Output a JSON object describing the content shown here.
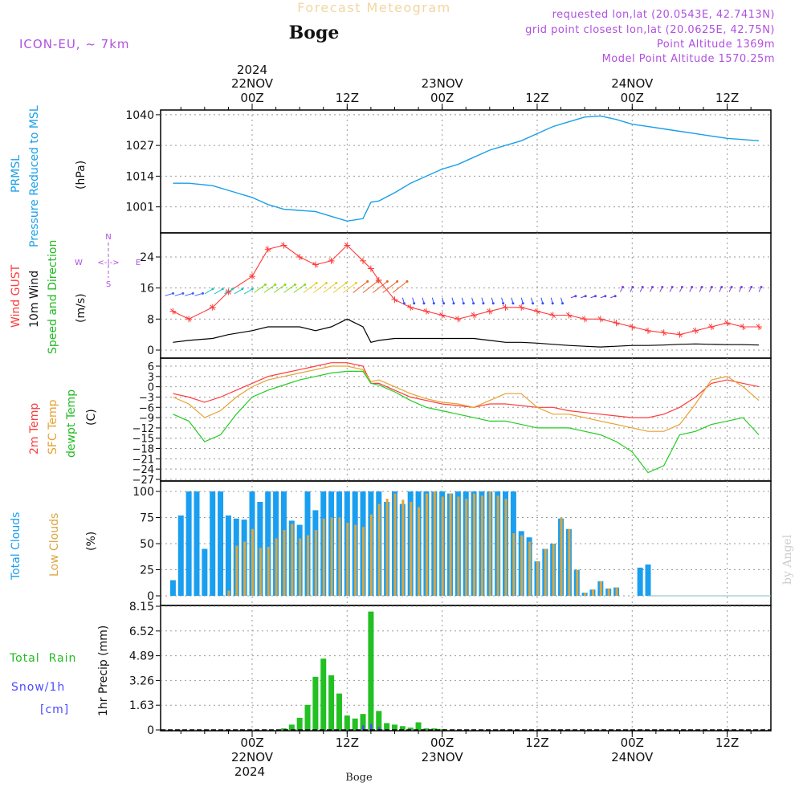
{
  "header": {
    "product": "Forecast Meteogram",
    "location": "Boge",
    "model": "ICON-EU, ~ 7km",
    "requested": "requested lon,lat (20.0543E, 42.7413N)",
    "grid_point": "grid point closest lon,lat (20.0625E, 42.75N)",
    "point_altitude": "Point Altitude 1369m",
    "model_altitude": "Model Point Altitude 1570.25m",
    "footer_location": "Boge",
    "watermark": "by Angel"
  },
  "time_axis": {
    "top_year": "2024",
    "day_labels": [
      "22NOV",
      "23NOV",
      "24NOV"
    ],
    "hour_labels": [
      "00Z",
      "12Z",
      "00Z",
      "12Z",
      "00Z",
      "12Z"
    ],
    "bottom_year": "2024"
  },
  "colors": {
    "pressure": "#1aa0e8",
    "gust": "#ff3b3b",
    "wind": "#000000",
    "t2m": "#ff3b3b",
    "sfc": "#e8a030",
    "dewpt": "#22cc22",
    "total_cloud": "#1a9ff0",
    "low_cloud": "#d9a640",
    "rain": "#22c022",
    "snow": "#4a4aff",
    "purple": "#b050e0"
  },
  "panel_labels": {
    "pressure": [
      "PRMSL",
      "Pressure Reduced to MSL",
      "(hPa)"
    ],
    "wind": [
      "Wind GUST",
      "10m Wind",
      "Speed and Direction",
      "(m/s)"
    ],
    "compass": {
      "n": "N",
      "s": "S",
      "e": "E",
      "w": "W",
      "arrows": "<-|->"
    },
    "temp": [
      "2m Temp",
      "SFC Temp",
      "dewpt Temp",
      "(C)"
    ],
    "cloud": [
      "Total Clouds",
      "Low Clouds",
      "(%)"
    ],
    "precip": [
      "Total  Rain",
      "Snow/1h",
      "[cm]",
      "1hr Precip (mm)"
    ]
  },
  "chart_data": [
    {
      "type": "line",
      "panel": "pressure",
      "ylim": [
        990,
        1042
      ],
      "yticks": [
        "1040",
        "1027",
        "1014",
        "1001"
      ],
      "x_hours": [
        -10,
        -8,
        -5,
        -2,
        0,
        2,
        4,
        6,
        8,
        10,
        12,
        14,
        15,
        16,
        18,
        20,
        22,
        24,
        26,
        28,
        30,
        32,
        34,
        36,
        38,
        40,
        42,
        44,
        46,
        48,
        50,
        52,
        54,
        56,
        58,
        60,
        64
      ],
      "series": [
        {
          "values": [
            1011,
            1011,
            1010,
            1007,
            1005,
            1002,
            1000,
            999.5,
            999,
            997,
            995,
            996,
            1003,
            1003.5,
            1007,
            1011,
            1014,
            1017,
            1019,
            1022,
            1025,
            1027,
            1029,
            1032,
            1035,
            1037,
            1039,
            1039.5,
            1038,
            1036,
            1035,
            1034,
            1033,
            1032,
            1031,
            1030,
            1029
          ]
        }
      ]
    },
    {
      "type": "line",
      "panel": "wind",
      "ylim": [
        0,
        30
      ],
      "yticks": [
        "24",
        "16",
        "8",
        "0"
      ],
      "x_hours": [
        -10,
        -8,
        -5,
        -3,
        0,
        2,
        4,
        6,
        8,
        10,
        12,
        14,
        15,
        16,
        18,
        20,
        22,
        24,
        26,
        28,
        30,
        32,
        34,
        36,
        38,
        40,
        42,
        44,
        46,
        48,
        50,
        52,
        54,
        56,
        58,
        60,
        62,
        64
      ],
      "series": [
        {
          "name": "Wind GUST",
          "values": [
            10,
            8,
            11,
            15,
            19,
            26,
            27,
            24,
            22,
            23,
            27,
            23,
            21,
            18,
            13,
            11,
            10,
            9,
            8,
            9,
            10,
            11,
            11,
            10,
            9,
            9,
            8,
            8,
            7,
            6,
            5,
            4.5,
            4,
            5,
            6,
            7,
            6,
            6
          ]
        },
        {
          "name": "10m Wind",
          "values": [
            2,
            2.5,
            3,
            4,
            5,
            6,
            6,
            6,
            5,
            6,
            8,
            6,
            2,
            2.5,
            3,
            3,
            3,
            3,
            3,
            3,
            2.5,
            2,
            2,
            1.8,
            1.5,
            1.2,
            1,
            0.8,
            1,
            1.2,
            1.2,
            1.3,
            1.5,
            1.6,
            1.5,
            1.4,
            1.4,
            1.3
          ]
        }
      ]
    },
    {
      "type": "line",
      "panel": "temp",
      "ylim": [
        -27,
        7
      ],
      "yticks": [
        "6",
        "3",
        "0",
        "-3",
        "-6",
        "-9",
        "-12",
        "-15",
        "-18",
        "-21",
        "-24",
        "-27"
      ],
      "x_hours": [
        -10,
        -8,
        -6,
        -4,
        -2,
        0,
        2,
        4,
        6,
        8,
        10,
        12,
        14,
        15,
        16,
        18,
        20,
        22,
        24,
        26,
        28,
        30,
        32,
        34,
        36,
        38,
        40,
        42,
        44,
        46,
        48,
        50,
        52,
        54,
        56,
        58,
        60,
        62,
        64
      ],
      "series": [
        {
          "name": "2m Temp",
          "values": [
            -2,
            -3,
            -4.5,
            -3,
            -1,
            1,
            3,
            4,
            5,
            6,
            7,
            7,
            6,
            1,
            1,
            -1,
            -3,
            -4,
            -5,
            -5.5,
            -6,
            -5,
            -5,
            -5.5,
            -6,
            -6,
            -7,
            -7.5,
            -8,
            -8.5,
            -9,
            -9,
            -8,
            -6,
            -3,
            1,
            2,
            1,
            0
          ]
        },
        {
          "name": "SFC Temp",
          "values": [
            -3,
            -5,
            -9,
            -7,
            -3,
            0,
            2,
            3,
            4,
            5,
            6,
            6,
            5,
            1.5,
            2,
            0,
            -2,
            -3.5,
            -4.5,
            -5,
            -6,
            -4,
            -2,
            -2,
            -6,
            -8,
            -8,
            -9,
            -10,
            -11,
            -12,
            -13,
            -13,
            -11,
            -5,
            2,
            3,
            0,
            -4
          ]
        },
        {
          "name": "dewpt Temp",
          "values": [
            -8,
            -10,
            -16,
            -14,
            -8,
            -3,
            -1,
            0.5,
            2,
            3,
            4,
            4.5,
            4.5,
            1,
            0.5,
            -1.5,
            -4,
            -6,
            -7,
            -8,
            -9,
            -10,
            -10,
            -11,
            -12,
            -12,
            -12,
            -13,
            -14,
            -16,
            -19,
            -25,
            -23,
            -14,
            -13,
            -11,
            -10,
            -9,
            -14
          ]
        }
      ]
    },
    {
      "type": "bar",
      "panel": "cloud",
      "ylim": [
        0,
        100
      ],
      "yticks": [
        "100",
        "75",
        "50",
        "25",
        "0"
      ],
      "x_hours": [
        -10,
        -9,
        -8,
        -7,
        -6,
        -5,
        -4,
        -3,
        -2,
        -1,
        0,
        1,
        2,
        3,
        4,
        5,
        6,
        7,
        8,
        9,
        10,
        11,
        12,
        13,
        14,
        15,
        16,
        17,
        18,
        19,
        20,
        21,
        22,
        23,
        24,
        25,
        26,
        27,
        28,
        29,
        30,
        31,
        32,
        33,
        34,
        35,
        36,
        37,
        38,
        39,
        40,
        41,
        42,
        43,
        44,
        45,
        46,
        47,
        48,
        49,
        50,
        51,
        52,
        53,
        54,
        55,
        56,
        57,
        58,
        59,
        60,
        61,
        62,
        63,
        64
      ],
      "series": [
        {
          "name": "Total Clouds",
          "values": [
            15,
            77,
            100,
            100,
            45,
            100,
            100,
            77,
            74,
            73,
            100,
            90,
            100,
            100,
            100,
            72,
            68,
            100,
            82,
            100,
            100,
            100,
            100,
            100,
            100,
            100,
            100,
            90,
            100,
            88,
            100,
            100,
            100,
            100,
            100,
            98,
            100,
            100,
            100,
            100,
            100,
            100,
            100,
            100,
            62,
            56,
            33,
            45,
            50,
            74,
            64,
            25,
            3,
            6,
            14,
            7,
            8,
            0,
            0,
            27,
            30,
            0,
            0,
            0,
            0,
            0,
            0,
            0,
            0,
            0,
            0,
            0,
            0,
            0,
            0
          ]
        },
        {
          "name": "Low Clouds",
          "values": [
            0,
            0,
            0,
            0,
            0,
            0,
            0,
            5,
            48,
            52,
            64,
            46,
            47,
            55,
            63,
            69,
            55,
            58,
            63,
            74,
            75,
            75,
            70,
            68,
            66,
            78,
            88,
            93,
            98,
            92,
            90,
            85,
            98,
            100,
            95,
            98,
            95,
            93,
            98,
            96,
            100,
            96,
            93,
            60,
            58,
            52,
            33,
            45,
            50,
            75,
            64,
            25,
            3,
            6,
            14,
            7,
            8,
            0,
            0,
            0,
            0,
            0,
            0,
            0,
            0,
            0,
            0,
            0,
            0,
            0,
            0,
            0,
            0,
            0,
            0
          ]
        }
      ]
    },
    {
      "type": "bar",
      "panel": "precip",
      "ylim": [
        0,
        8.15
      ],
      "yticks": [
        "8.15",
        "6.52",
        "4.89",
        "3.26",
        "1.63",
        "0"
      ],
      "x_hours": [
        4,
        5,
        6,
        7,
        8,
        9,
        10,
        11,
        12,
        13,
        14,
        15,
        16,
        17,
        18,
        19,
        20,
        21,
        22,
        23,
        24
      ],
      "series": [
        {
          "name": "Total Rain",
          "values": [
            0.1,
            0.35,
            0.8,
            1.65,
            3.5,
            4.7,
            3.6,
            2.4,
            0.95,
            0.75,
            1.05,
            7.8,
            1.25,
            0.45,
            0.35,
            0.25,
            0.15,
            0.5,
            0.1,
            0.1,
            0.05
          ]
        },
        {
          "name": "Snow/1h",
          "values": [
            0,
            0,
            0,
            0,
            0,
            0,
            0,
            0,
            0,
            0,
            0.3,
            0.4,
            0.2,
            0,
            0,
            0,
            0,
            0,
            0,
            0,
            0
          ]
        }
      ]
    }
  ]
}
